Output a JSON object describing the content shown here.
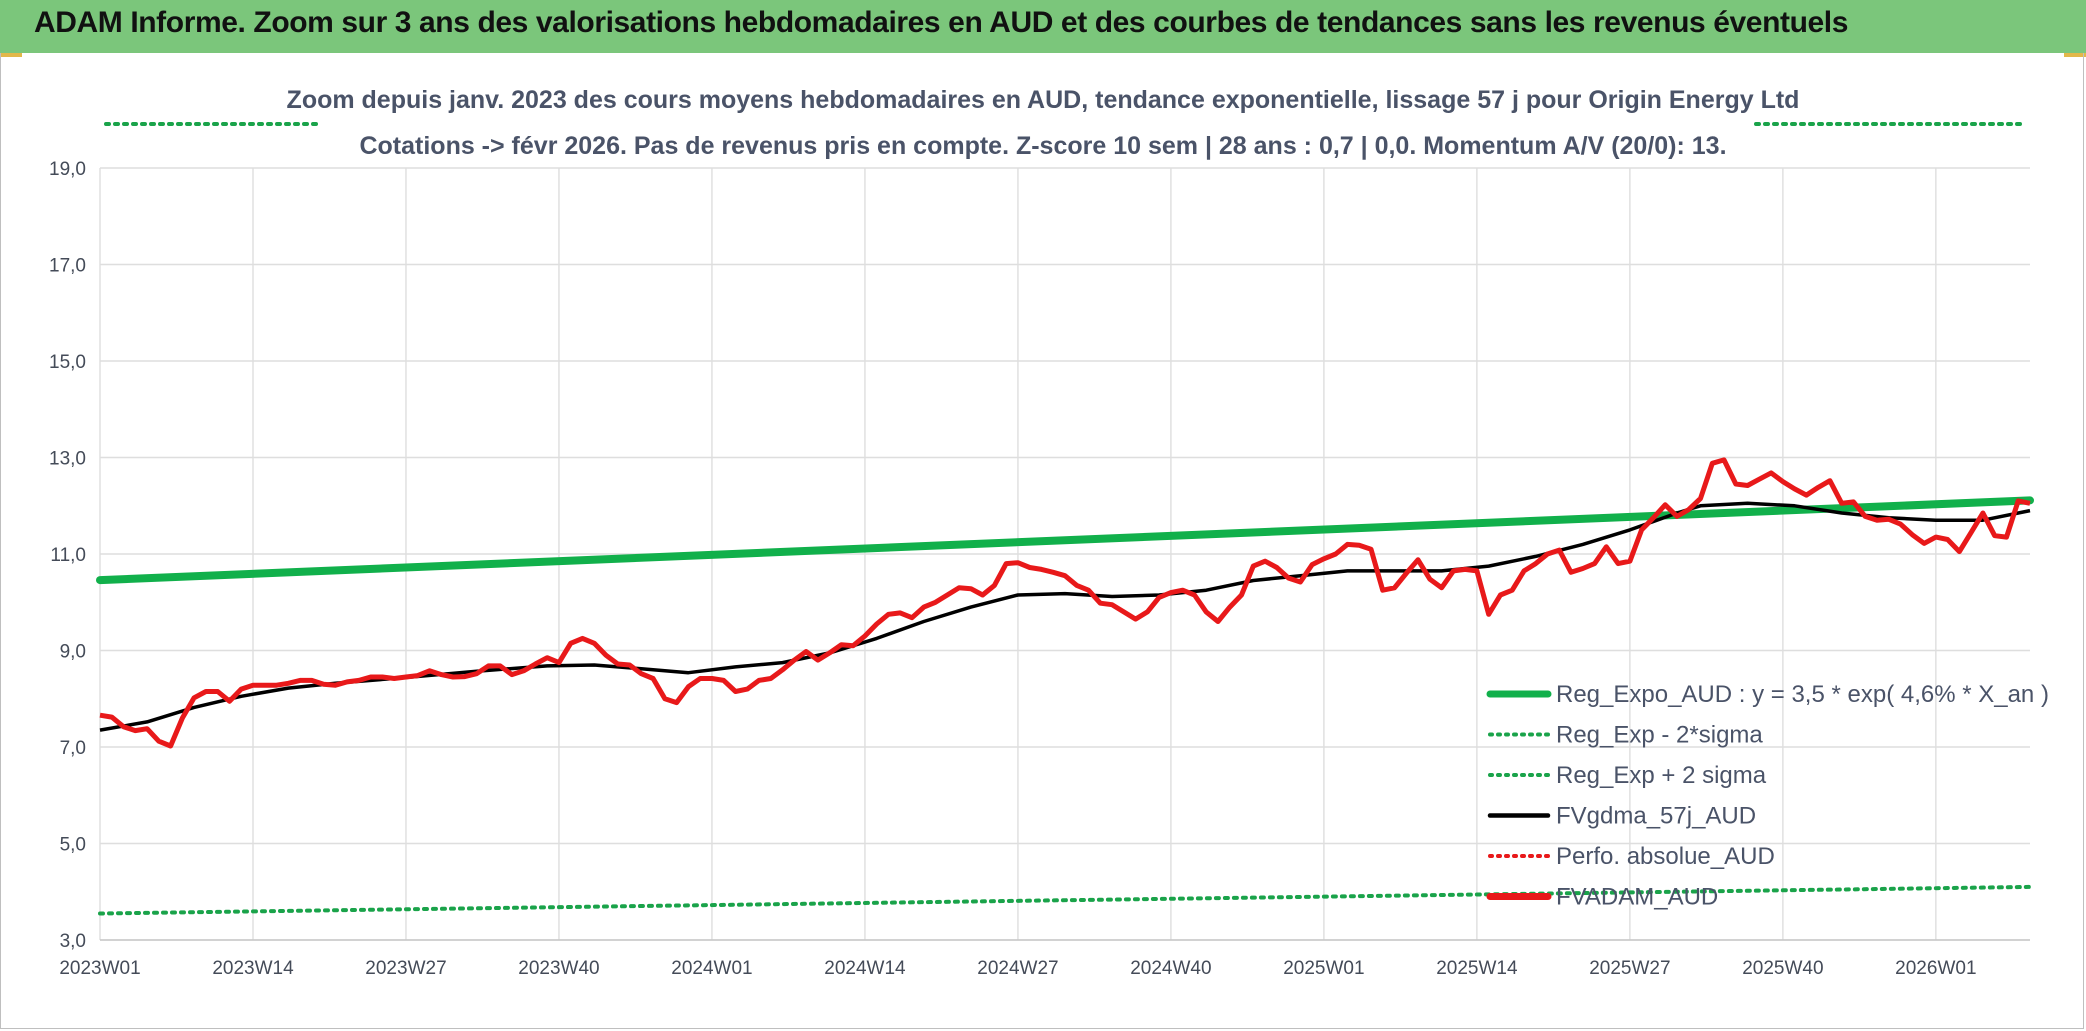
{
  "header": {
    "title": "ADAM Informe. Zoom sur 3 ans des valorisations hebdomadaires en AUD et des courbes de tendances sans les revenus éventuels"
  },
  "colors": {
    "header_bg": "#7bc67b",
    "trend_green": "#11b04b",
    "band_green": "#1aa34a",
    "fvgdma_black": "#000000",
    "fvadam_red": "#e8191a",
    "perfo_red": "#e8191a"
  },
  "chart_data": {
    "type": "line",
    "subtitle_line1": "Zoom depuis janv. 2023 des cours moyens hebdomadaires en AUD, tendance exponentielle, lissage 57 j pour Origin Energy Ltd",
    "subtitle_line2": "Cotations -> févr 2026. Pas de revenus pris en compte. Z-score 10 sem | 28 ans : 0,7 | 0,0. Momentum A/V (20/0): 13.",
    "ylim": [
      3.0,
      19.0
    ],
    "yticks": [
      "3,0",
      "5,0",
      "7,0",
      "9,0",
      "11,0",
      "13,0",
      "15,0",
      "17,0",
      "19,0"
    ],
    "ytick_values": [
      3,
      5,
      7,
      9,
      11,
      13,
      15,
      17,
      19
    ],
    "xlim": [
      0,
      164
    ],
    "xticks": [
      "2023W01",
      "2023W14",
      "2023W27",
      "2023W40",
      "2024W01",
      "2024W14",
      "2024W27",
      "2024W40",
      "2025W01",
      "2025W14",
      "2025W27",
      "2025W40",
      "2026W01"
    ],
    "xtick_positions": [
      0,
      13,
      26,
      39,
      52,
      65,
      78,
      91,
      104,
      117,
      130,
      143,
      156
    ],
    "legend": [
      {
        "label": "Reg_Expo_AUD : y = 3,5 * exp( 4,6% *  X_an )",
        "style": "solid-thick",
        "color": "#11b04b"
      },
      {
        "label": "Reg_Exp - 2*sigma",
        "style": "dotted",
        "color": "#1aa34a"
      },
      {
        "label": "Reg_Exp + 2 sigma",
        "style": "dotted",
        "color": "#1aa34a"
      },
      {
        "label": "FVgdma_57j_AUD",
        "style": "solid",
        "color": "#000000"
      },
      {
        "label": "Perfo. absolue_AUD",
        "style": "dotted",
        "color": "#e8191a"
      },
      {
        "label": "FVADAM_AUD",
        "style": "solid-thick",
        "color": "#e8191a"
      }
    ],
    "series": [
      {
        "name": "Reg_Expo_AUD",
        "x": [
          0,
          164
        ],
        "y": [
          10.46,
          12.11
        ]
      },
      {
        "name": "Reg_Exp - 2*sigma",
        "x": [
          0,
          164
        ],
        "y": [
          3.55,
          4.1
        ]
      },
      {
        "name": "Reg_Exp + 2 sigma",
        "x": [
          0,
          164
        ],
        "y": [
          20.0,
          20.0
        ]
      },
      {
        "name": "FVgdma_57j_AUD",
        "x": [
          0,
          4,
          8,
          12,
          16,
          20,
          26,
          32,
          38,
          42,
          46,
          50,
          54,
          58,
          62,
          66,
          70,
          74,
          78,
          82,
          86,
          90,
          94,
          98,
          102,
          106,
          110,
          114,
          118,
          122,
          126,
          130,
          134,
          136,
          140,
          144,
          148,
          152,
          156,
          160,
          164
        ],
        "y": [
          7.35,
          7.52,
          7.82,
          8.05,
          8.22,
          8.32,
          8.44,
          8.57,
          8.68,
          8.7,
          8.62,
          8.54,
          8.66,
          8.75,
          8.95,
          9.25,
          9.6,
          9.9,
          10.15,
          10.18,
          10.12,
          10.15,
          10.25,
          10.45,
          10.55,
          10.65,
          10.65,
          10.65,
          10.75,
          10.95,
          11.2,
          11.5,
          11.85,
          12.0,
          12.05,
          12.0,
          11.85,
          11.75,
          11.7,
          11.7,
          11.9
        ]
      },
      {
        "name": "FVADAM_AUD",
        "x": [
          0,
          1,
          2,
          3,
          4,
          5,
          6,
          7,
          8,
          9,
          10,
          11,
          12,
          13,
          14,
          15,
          16,
          17,
          18,
          19,
          20,
          21,
          22,
          23,
          24,
          25,
          26,
          27,
          28,
          29,
          30,
          31,
          32,
          33,
          34,
          35,
          36,
          37,
          38,
          39,
          40,
          41,
          42,
          43,
          44,
          45,
          46,
          47,
          48,
          49,
          50,
          51,
          52,
          53,
          54,
          55,
          56,
          57,
          58,
          59,
          60,
          61,
          62,
          63,
          64,
          65,
          66,
          67,
          68,
          69,
          70,
          71,
          72,
          73,
          74,
          75,
          76,
          77,
          78,
          79,
          80,
          81,
          82,
          83,
          84,
          85,
          86,
          87,
          88,
          89,
          90,
          91,
          92,
          93,
          94,
          95,
          96,
          97,
          98,
          99,
          100,
          101,
          102,
          103,
          104,
          105,
          106,
          107,
          108,
          109,
          110,
          111,
          112,
          113,
          114,
          115,
          116,
          117,
          118,
          119,
          120,
          121,
          122,
          123,
          124,
          125,
          126,
          127,
          128,
          129,
          130,
          131,
          132,
          133,
          134,
          135,
          136,
          137,
          138,
          139,
          140,
          141,
          142,
          143,
          144,
          145,
          146,
          147,
          148,
          149,
          150,
          151,
          152,
          153,
          154,
          155,
          156,
          157,
          158,
          159,
          160,
          161,
          162,
          163,
          164
        ],
        "y": [
          7.66,
          7.62,
          7.42,
          7.34,
          7.38,
          7.12,
          7.02,
          7.6,
          8.02,
          8.15,
          8.15,
          7.95,
          8.2,
          8.28,
          8.28,
          8.28,
          8.32,
          8.38,
          8.38,
          8.3,
          8.28,
          8.35,
          8.38,
          8.45,
          8.45,
          8.42,
          8.45,
          8.48,
          8.58,
          8.5,
          8.45,
          8.46,
          8.52,
          8.68,
          8.68,
          8.5,
          8.58,
          8.72,
          8.85,
          8.75,
          9.15,
          9.25,
          9.15,
          8.9,
          8.72,
          8.7,
          8.52,
          8.42,
          8.0,
          7.92,
          8.25,
          8.42,
          8.42,
          8.38,
          8.15,
          8.2,
          8.38,
          8.42,
          8.6,
          8.8,
          8.98,
          8.8,
          8.95,
          9.12,
          9.1,
          9.3,
          9.55,
          9.75,
          9.78,
          9.68,
          9.9,
          10.0,
          10.15,
          10.3,
          10.28,
          10.15,
          10.35,
          10.8,
          10.82,
          10.72,
          10.68,
          10.62,
          10.55,
          10.35,
          10.25,
          9.98,
          9.95,
          9.8,
          9.65,
          9.8,
          10.1,
          10.2,
          10.25,
          10.15,
          9.8,
          9.6,
          9.9,
          10.15,
          10.75,
          10.85,
          10.72,
          10.5,
          10.42,
          10.78,
          10.9,
          11.0,
          11.2,
          11.18,
          11.1,
          10.25,
          10.3,
          10.6,
          10.88,
          10.48,
          10.3,
          10.65,
          10.68,
          10.65,
          9.75,
          10.15,
          10.25,
          10.65,
          10.8,
          11.0,
          11.08,
          10.62,
          10.7,
          10.8,
          11.15,
          10.8,
          10.85,
          11.5,
          11.75,
          12.02,
          11.78,
          11.92,
          12.15,
          12.88,
          12.95,
          12.45,
          12.42,
          12.55,
          12.68,
          12.5,
          12.35,
          12.22,
          12.38,
          12.52,
          12.05,
          12.08,
          11.78,
          11.7,
          11.72,
          11.62,
          11.4,
          11.22,
          11.35,
          11.3,
          11.05,
          11.45,
          11.85,
          11.38,
          11.35,
          12.1,
          12.05
        ]
      }
    ]
  }
}
